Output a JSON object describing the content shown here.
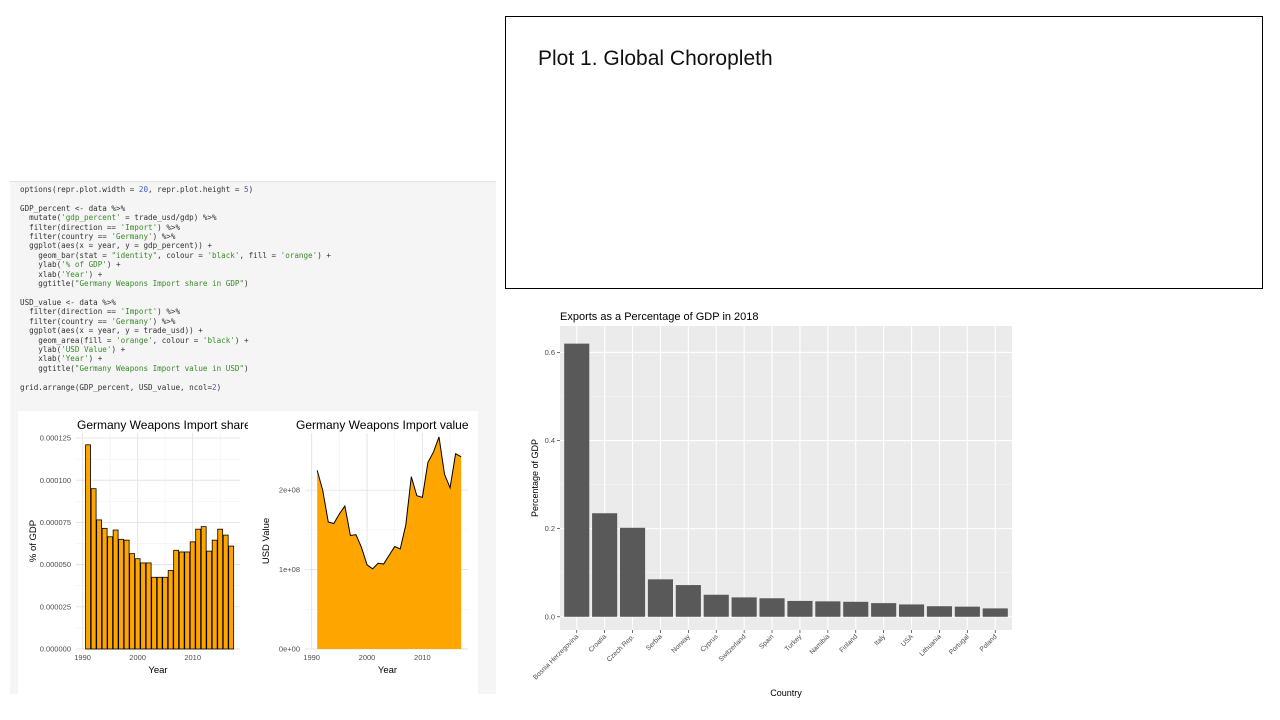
{
  "code": {
    "lines": [
      [
        {
          "t": "options(repr.plot.width = "
        },
        {
          "t": "20",
          "c": "num"
        },
        {
          "t": ", repr.plot.height = "
        },
        {
          "t": "5",
          "c": "num"
        },
        {
          "t": ")"
        }
      ],
      [
        {
          "t": ""
        }
      ],
      [
        {
          "t": "GDP_percent <- data %>%"
        }
      ],
      [
        {
          "t": "  mutate("
        },
        {
          "t": "'gdp_percent'",
          "c": "str"
        },
        {
          "t": " = trade_usd/gdp) %>%"
        }
      ],
      [
        {
          "t": "  filter(direction == "
        },
        {
          "t": "'Import'",
          "c": "str"
        },
        {
          "t": ") %>%"
        }
      ],
      [
        {
          "t": "  filter(country == "
        },
        {
          "t": "'Germany'",
          "c": "str"
        },
        {
          "t": ") %>%"
        }
      ],
      [
        {
          "t": "  ggplot(aes(x = year, y = gdp_percent)) +"
        }
      ],
      [
        {
          "t": "    geom_bar(stat = "
        },
        {
          "t": "\"identity\"",
          "c": "str"
        },
        {
          "t": ", colour = "
        },
        {
          "t": "'black'",
          "c": "str"
        },
        {
          "t": ", fill = "
        },
        {
          "t": "'orange'",
          "c": "str"
        },
        {
          "t": ") +"
        }
      ],
      [
        {
          "t": "    ylab("
        },
        {
          "t": "'% of GDP'",
          "c": "str"
        },
        {
          "t": ") +"
        }
      ],
      [
        {
          "t": "    xlab("
        },
        {
          "t": "'Year'",
          "c": "str"
        },
        {
          "t": ") +"
        }
      ],
      [
        {
          "t": "    ggtitle("
        },
        {
          "t": "\"Germany Weapons Import share in GDP\"",
          "c": "str"
        },
        {
          "t": ")"
        }
      ],
      [
        {
          "t": ""
        }
      ],
      [
        {
          "t": "USD_value <- data %>%"
        }
      ],
      [
        {
          "t": "  filter(direction == "
        },
        {
          "t": "'Import'",
          "c": "str"
        },
        {
          "t": ") %>%"
        }
      ],
      [
        {
          "t": "  filter(country == "
        },
        {
          "t": "'Germany'",
          "c": "str"
        },
        {
          "t": ") %>%"
        }
      ],
      [
        {
          "t": "  ggplot(aes(x = year, y = trade_usd)) +"
        }
      ],
      [
        {
          "t": "    geom_area(fill = "
        },
        {
          "t": "'orange'",
          "c": "str"
        },
        {
          "t": ", colour = "
        },
        {
          "t": "'black'",
          "c": "str"
        },
        {
          "t": ") +"
        }
      ],
      [
        {
          "t": "    ylab("
        },
        {
          "t": "'USD Value'",
          "c": "str"
        },
        {
          "t": ") +"
        }
      ],
      [
        {
          "t": "    xlab("
        },
        {
          "t": "'Year'",
          "c": "str"
        },
        {
          "t": ") +"
        }
      ],
      [
        {
          "t": "    ggtitle("
        },
        {
          "t": "\"Germany Weapons Import value in USD\"",
          "c": "str"
        },
        {
          "t": ")"
        }
      ],
      [
        {
          "t": ""
        }
      ],
      [
        {
          "t": "grid.arrange(GDP_percent, USD_value, ncol="
        },
        {
          "t": "2",
          "c": "num"
        },
        {
          "t": ")"
        }
      ]
    ],
    "colors": {
      "string": "#3a8a2a",
      "number": "#3a5fcd"
    }
  },
  "plot_box": {
    "title": "Plot 1. Global Choropleth"
  },
  "chart_data": [
    {
      "type": "bar",
      "title": "Germany Weapons Import share in GDP",
      "xlabel": "Year",
      "ylabel": "% of GDP",
      "fill": "#FFA500",
      "outline": "#000000",
      "x": [
        1991,
        1992,
        1993,
        1994,
        1995,
        1996,
        1997,
        1998,
        1999,
        2000,
        2001,
        2002,
        2003,
        2004,
        2005,
        2006,
        2007,
        2008,
        2009,
        2010,
        2011,
        2012,
        2013,
        2014,
        2015,
        2016,
        2017
      ],
      "values": [
        0.000121,
        9.5e-05,
        7.65e-05,
        7.15e-05,
        6.65e-05,
        7.05e-05,
        6.5e-05,
        6.45e-05,
        5.65e-05,
        5.35e-05,
        5.1e-05,
        5.1e-05,
        4.25e-05,
        4.25e-05,
        4.25e-05,
        4.65e-05,
        5.85e-05,
        5.75e-05,
        5.75e-05,
        6.35e-05,
        7.1e-05,
        7.25e-05,
        5.8e-05,
        6.45e-05,
        7.1e-05,
        6.75e-05,
        6.1e-05
      ],
      "xlim": [
        1988.8,
        2018.6
      ],
      "ylim": [
        0,
        0.000128
      ],
      "xticks": [
        1990,
        2000,
        2010
      ],
      "yticks": [
        0,
        2.5e-05,
        5e-05,
        7.5e-05,
        0.0001,
        0.000125
      ],
      "ytick_labels": [
        "0.000000",
        "0.000025",
        "0.000050",
        "0.000075",
        "0.000100",
        "0.000125"
      ],
      "grid": true
    },
    {
      "type": "area",
      "title": "Germany Weapons Import value in USD",
      "xlabel": "Year",
      "ylabel": "USD Value",
      "fill": "#FFA500",
      "outline": "#000000",
      "x": [
        1991,
        1992,
        1993,
        1994,
        1995,
        1996,
        1997,
        1998,
        1999,
        2000,
        2001,
        2002,
        2003,
        2004,
        2005,
        2006,
        2007,
        2008,
        2009,
        2010,
        2011,
        2012,
        2013,
        2014,
        2015,
        2016,
        2017
      ],
      "values": [
        225000000,
        200000000,
        160000000,
        158000000,
        170000000,
        180000000,
        143000000,
        144000000,
        128000000,
        106000000,
        101000000,
        108000000,
        107000000,
        118000000,
        129000000,
        126000000,
        156000000,
        217000000,
        193000000,
        191000000,
        235000000,
        248000000,
        267000000,
        220000000,
        203000000,
        246000000,
        242000000
      ],
      "xlim": [
        1988.8,
        2018.6
      ],
      "ylim": [
        0,
        272000000
      ],
      "xticks": [
        1990,
        2000,
        2010
      ],
      "yticks": [
        0,
        100000000,
        200000000
      ],
      "ytick_labels": [
        "0e+00",
        "1e+08",
        "2e+08"
      ],
      "grid": true
    },
    {
      "type": "bar",
      "title": "Exports as a Percentage of GDP in 2018",
      "xlabel": "Country",
      "ylabel": "Percentage of GDP",
      "fill": "#595959",
      "categories": [
        "Bosnia Herzegovina",
        "Croatia",
        "Czech Rep.",
        "Serbia",
        "Norway",
        "Cyprus",
        "Switzerland",
        "Spain",
        "Turkey",
        "Namibia",
        "Finland",
        "Italy",
        "USA",
        "Lithuania",
        "Portugal",
        "Poland"
      ],
      "values": [
        0.62,
        0.235,
        0.202,
        0.085,
        0.072,
        0.05,
        0.044,
        0.042,
        0.036,
        0.035,
        0.034,
        0.031,
        0.028,
        0.024,
        0.023,
        0.019
      ],
      "ylim": [
        -0.03,
        0.66
      ],
      "yticks": [
        0,
        0.2,
        0.4,
        0.6
      ],
      "ytick_labels": [
        "0.0",
        "0.2",
        "0.4",
        "0.6"
      ],
      "grid": true,
      "background": "#EBEBEB"
    }
  ]
}
